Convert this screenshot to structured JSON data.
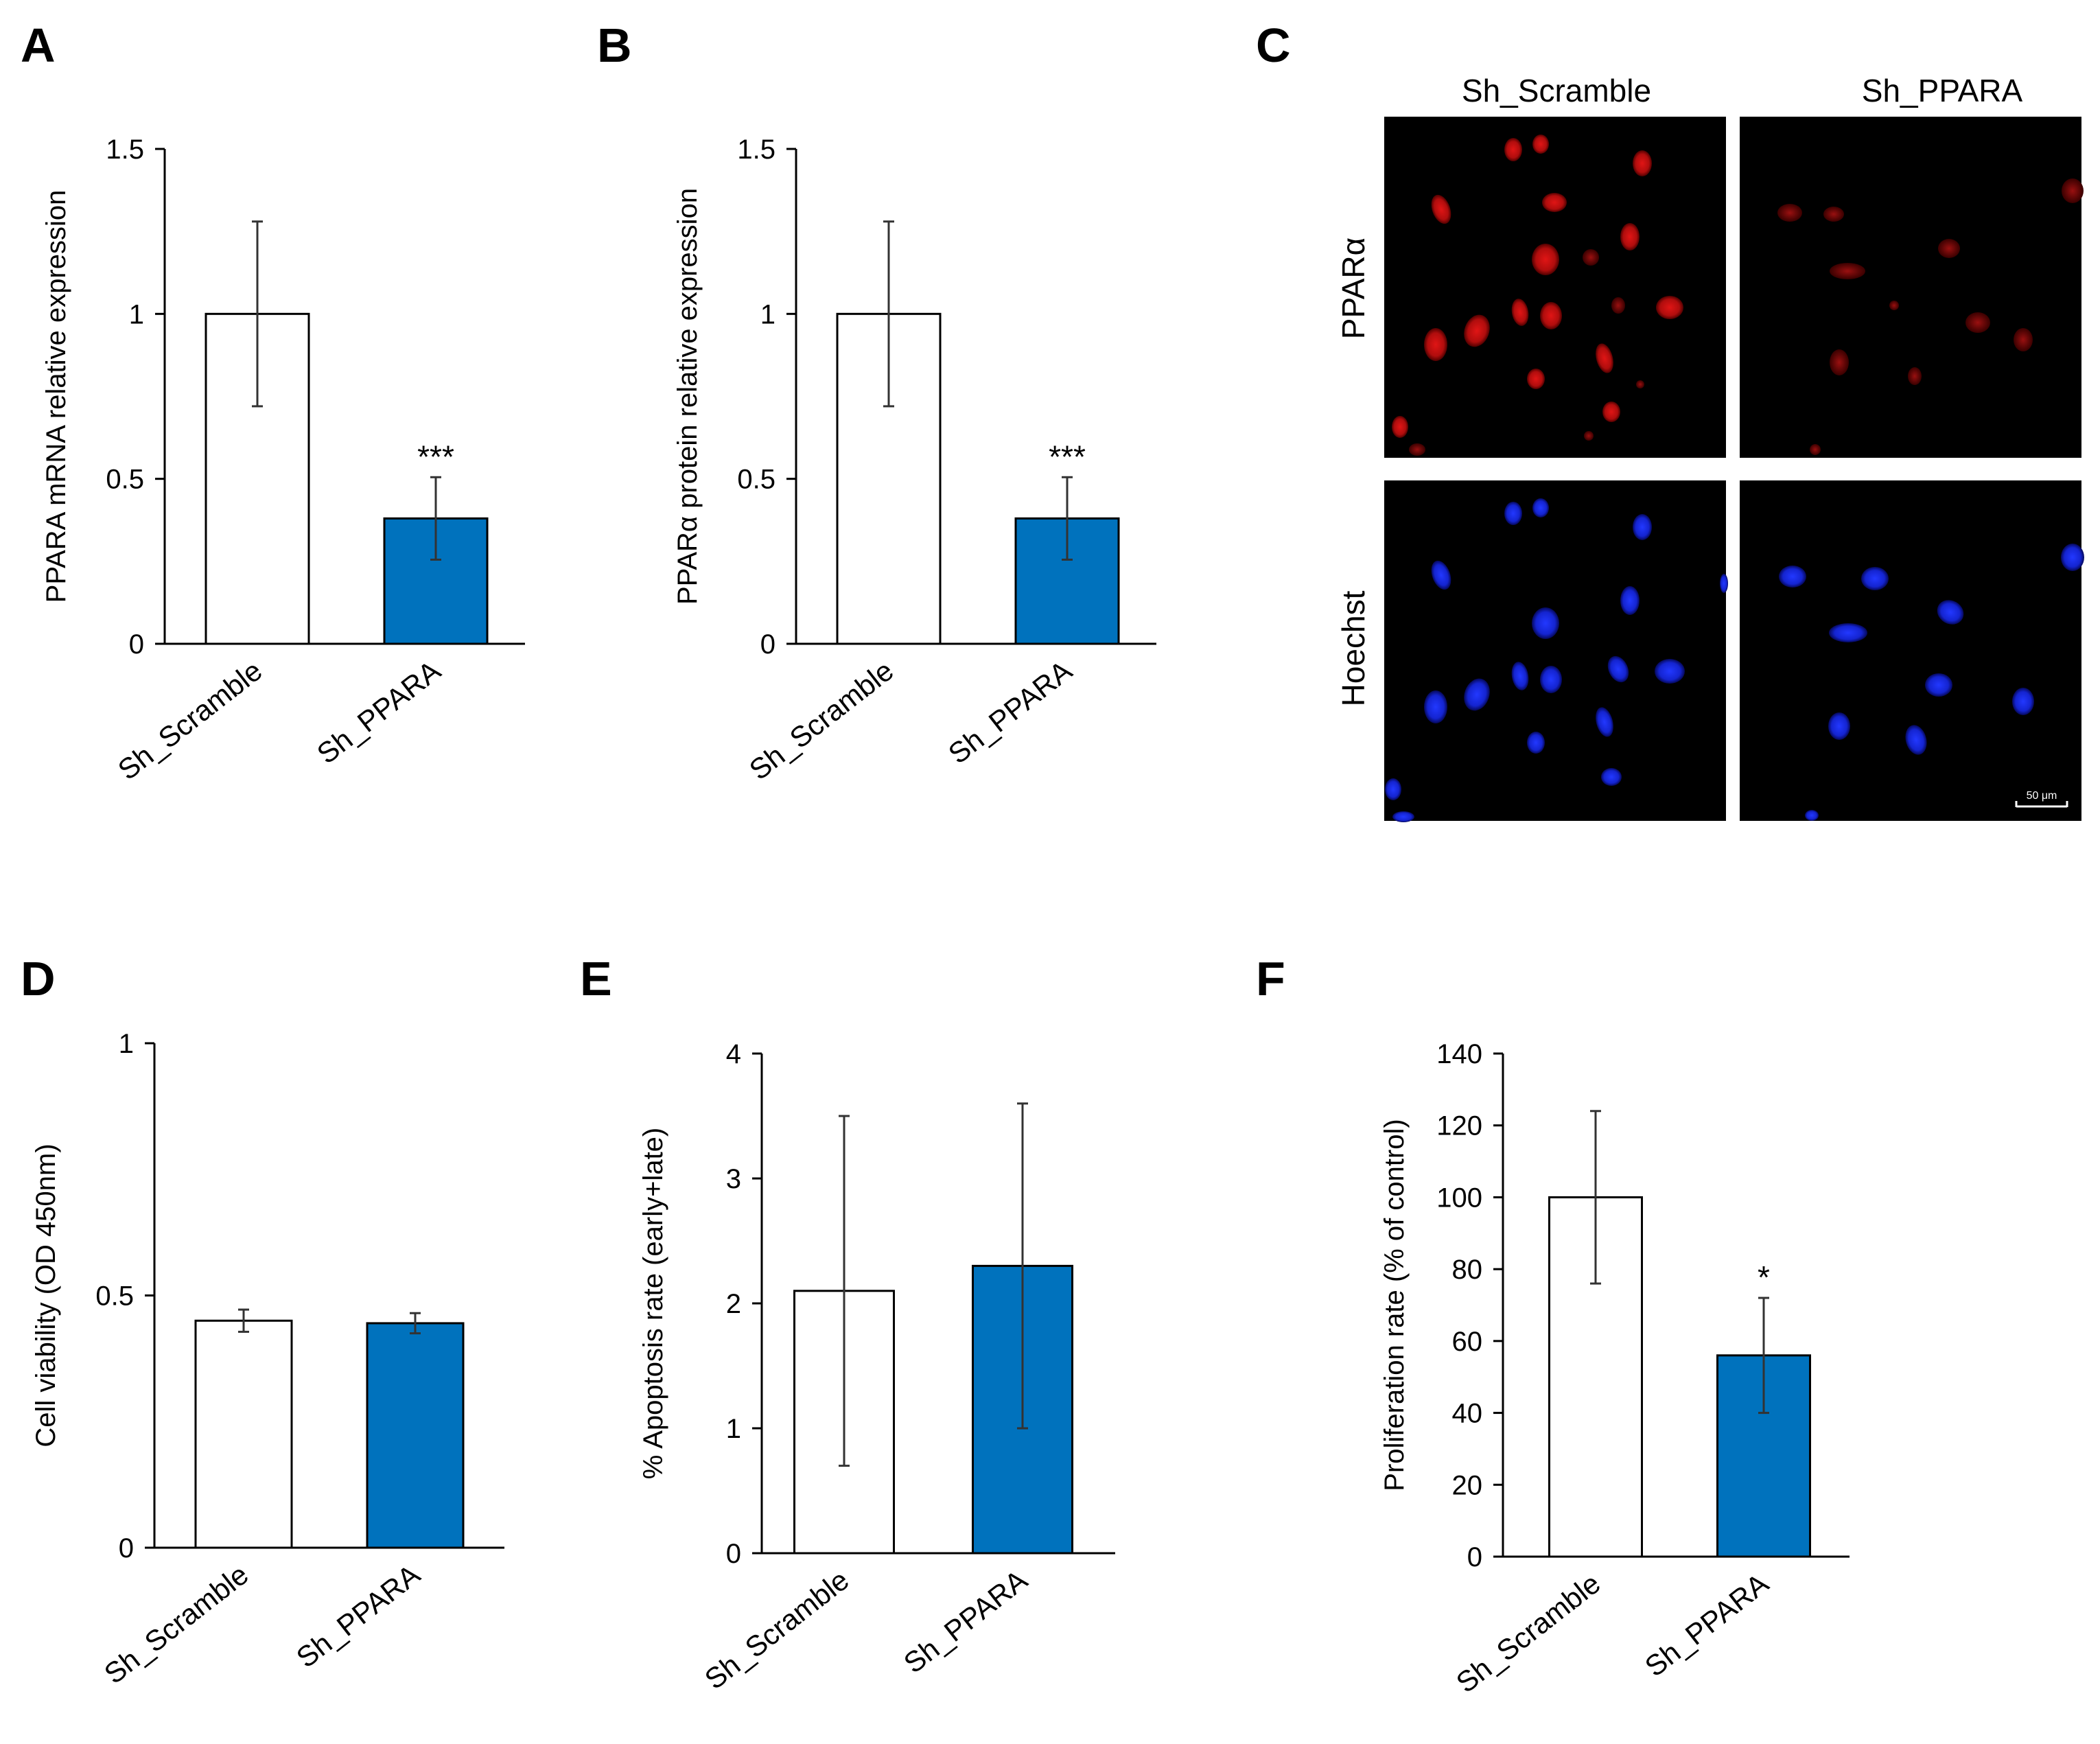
{
  "colors": {
    "control": "#ffffff",
    "knockdown": "#0072bd",
    "axis": "#000000",
    "errorbar": "#333333"
  },
  "chart_data": [
    {
      "id": "A",
      "letter": "A",
      "type": "bar",
      "categories": [
        "Sh_Scramble",
        "Sh_PPARA"
      ],
      "values": [
        1.0,
        0.38
      ],
      "errors": [
        0.28,
        0.125
      ],
      "ylim": [
        0,
        1.5
      ],
      "yticks": [
        "0",
        "0.5",
        "1",
        "1.5"
      ],
      "ytick_values": [
        0,
        0.5,
        1,
        1.5
      ],
      "ylabel": "PPARA mRNA relative expression",
      "annotations": [
        "",
        "***"
      ]
    },
    {
      "id": "B",
      "letter": "B",
      "type": "bar",
      "categories": [
        "Sh_Scramble",
        "Sh_PPARA"
      ],
      "values": [
        1.0,
        0.38
      ],
      "errors": [
        0.28,
        0.125
      ],
      "ylim": [
        0,
        1.5
      ],
      "yticks": [
        "0",
        "0.5",
        "1",
        "1.5"
      ],
      "ytick_values": [
        0,
        0.5,
        1,
        1.5
      ],
      "ylabel": "PPARα protein relative expression",
      "annotations": [
        "",
        "***"
      ]
    },
    {
      "id": "D",
      "letter": "D",
      "type": "bar",
      "categories": [
        "Sh_Scramble",
        "Sh_PPARA"
      ],
      "values": [
        0.45,
        0.445
      ],
      "errors": [
        0.022,
        0.02
      ],
      "ylim": [
        0,
        1
      ],
      "yticks": [
        "0",
        "0.5",
        "1"
      ],
      "ytick_values": [
        0,
        0.5,
        1
      ],
      "ylabel": "Cell viability (OD 450nm)",
      "annotations": [
        "",
        ""
      ]
    },
    {
      "id": "E",
      "letter": "E",
      "type": "bar",
      "categories": [
        "Sh_Scramble",
        "Sh_PPARA"
      ],
      "values": [
        2.1,
        2.3
      ],
      "errors": [
        1.4,
        1.3
      ],
      "ylim": [
        0,
        4
      ],
      "yticks": [
        "0",
        "1",
        "2",
        "3",
        "4"
      ],
      "ytick_values": [
        0,
        1,
        2,
        3,
        4
      ],
      "ylabel": "% Apoptosis rate (early+late)",
      "annotations": [
        "",
        ""
      ]
    },
    {
      "id": "F",
      "letter": "F",
      "type": "bar",
      "categories": [
        "Sh_Scramble",
        "Sh_PPARA"
      ],
      "values": [
        100,
        56
      ],
      "errors": [
        24,
        16
      ],
      "ylim": [
        0,
        140
      ],
      "yticks": [
        "0",
        "20",
        "40",
        "60",
        "80",
        "100",
        "120",
        "140"
      ],
      "ytick_values": [
        0,
        20,
        40,
        60,
        80,
        100,
        120,
        140
      ],
      "ylabel": "Proliferation rate (% of control)",
      "annotations": [
        "",
        "*"
      ]
    }
  ],
  "panel_c": {
    "letter": "C",
    "columns": [
      "Sh_Scramble",
      "Sh_PPARA"
    ],
    "rows": [
      "PPARα",
      "Hoechst"
    ],
    "scale_bar": "50 μm",
    "stain_colors": {
      "ppara": "#d01010",
      "hoechst": "#1a2dff"
    }
  }
}
